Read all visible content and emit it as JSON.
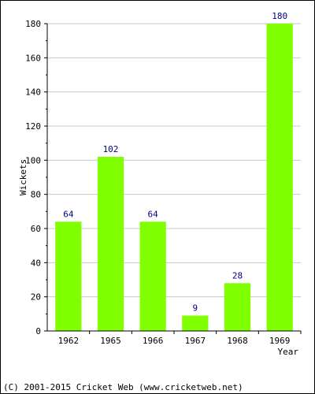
{
  "chart_data": {
    "type": "bar",
    "categories": [
      "1962",
      "1965",
      "1966",
      "1967",
      "1968",
      "1969"
    ],
    "values": [
      64,
      102,
      64,
      9,
      28,
      180
    ],
    "title": "",
    "xlabel": "Year",
    "ylabel": "Wickets",
    "ylim": [
      0,
      180
    ],
    "yticks": [
      0,
      20,
      40,
      60,
      80,
      100,
      120,
      140,
      160,
      180
    ],
    "grid": true,
    "data_labels": true
  },
  "colors": {
    "bar": "#80ff00",
    "value_label": "#000080",
    "grid": "#c8c8c8",
    "axis": "#000000"
  },
  "footer": {
    "copyright": "(C) 2001-2015 Cricket Web (www.cricketweb.net)"
  }
}
